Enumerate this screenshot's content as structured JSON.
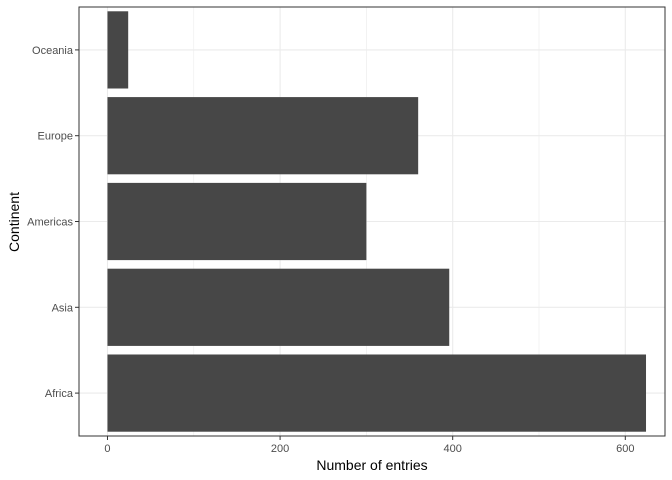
{
  "chart_data": {
    "type": "bar",
    "orientation": "horizontal",
    "categories": [
      "Africa",
      "Asia",
      "Americas",
      "Europe",
      "Oceania"
    ],
    "values": [
      624,
      396,
      300,
      360,
      24
    ],
    "xlabel": "Number of entries",
    "ylabel": "Continent",
    "xlim": [
      -33,
      646
    ],
    "xticks": [
      0,
      200,
      400,
      600
    ],
    "grid": true,
    "bar_color": "#474747",
    "grid_color": "#ebebeb",
    "panel_border_color": "#333333"
  }
}
